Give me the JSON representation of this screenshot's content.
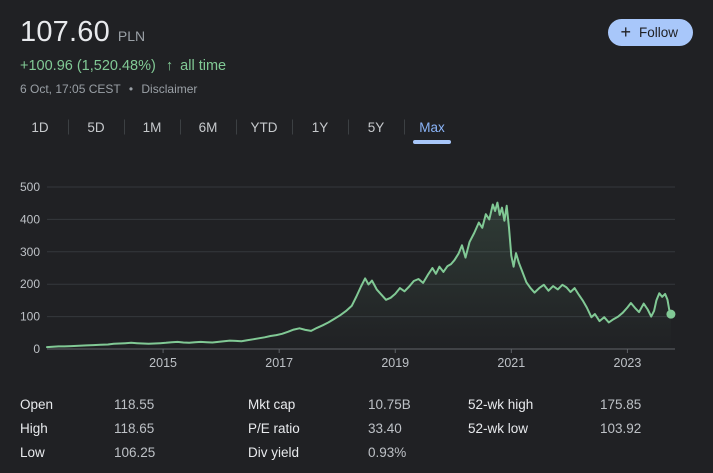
{
  "colors": {
    "background": "#202124",
    "accent_blue": "#8ab4f8",
    "underline_blue": "#a8c7fa",
    "follow_bg": "#a8c7fa",
    "positive_green": "#81c995",
    "text_primary": "#e8eaed",
    "text_secondary": "#9aa0a6",
    "axis_label": "#bdc1c6",
    "grid_line": "#34383c",
    "baseline": "#5f6368"
  },
  "header": {
    "price": "107.60",
    "currency": "PLN",
    "change_text": "+100.96 (1,520.48%)",
    "change_arrow": "↑",
    "change_period": "all time",
    "timestamp": "6 Oct, 17:05 CEST",
    "separator": "•",
    "disclaimer_label": "Disclaimer",
    "follow": {
      "plus": "+",
      "label": "Follow"
    }
  },
  "tabs": {
    "items": [
      "1D",
      "5D",
      "1M",
      "6M",
      "YTD",
      "1Y",
      "5Y",
      "Max"
    ],
    "active": "Max"
  },
  "chart_data": {
    "type": "line",
    "title": "Stock price, Max range (PLN)",
    "line_color": "#81c995",
    "grid": true,
    "ylim": [
      0,
      500
    ],
    "y_ticks": [
      0,
      100,
      200,
      300,
      400,
      500
    ],
    "x_range": [
      2013.0,
      2023.82
    ],
    "x_tick_labels": [
      "2015",
      "2017",
      "2019",
      "2021",
      "2023"
    ],
    "x_tick_years": [
      2015,
      2017,
      2019,
      2021,
      2023
    ],
    "end_point_marker": true,
    "last_value": 107.6,
    "points": [
      [
        2013.0,
        6
      ],
      [
        2013.1,
        7
      ],
      [
        2013.2,
        8
      ],
      [
        2013.3,
        8
      ],
      [
        2013.42,
        9
      ],
      [
        2013.55,
        10
      ],
      [
        2013.68,
        11
      ],
      [
        2013.8,
        12
      ],
      [
        2013.92,
        13
      ],
      [
        2014.05,
        14
      ],
      [
        2014.15,
        16
      ],
      [
        2014.25,
        17
      ],
      [
        2014.35,
        18
      ],
      [
        2014.45,
        19
      ],
      [
        2014.55,
        18
      ],
      [
        2014.65,
        17
      ],
      [
        2014.75,
        16
      ],
      [
        2014.85,
        17
      ],
      [
        2014.95,
        18
      ],
      [
        2015.05,
        19
      ],
      [
        2015.15,
        21
      ],
      [
        2015.25,
        22
      ],
      [
        2015.35,
        20
      ],
      [
        2015.45,
        19
      ],
      [
        2015.55,
        21
      ],
      [
        2015.65,
        22
      ],
      [
        2015.75,
        21
      ],
      [
        2015.85,
        20
      ],
      [
        2015.95,
        22
      ],
      [
        2016.05,
        24
      ],
      [
        2016.15,
        26
      ],
      [
        2016.25,
        25
      ],
      [
        2016.35,
        24
      ],
      [
        2016.45,
        27
      ],
      [
        2016.55,
        30
      ],
      [
        2016.65,
        33
      ],
      [
        2016.75,
        36
      ],
      [
        2016.85,
        40
      ],
      [
        2016.95,
        43
      ],
      [
        2017.05,
        47
      ],
      [
        2017.15,
        53
      ],
      [
        2017.25,
        60
      ],
      [
        2017.35,
        64
      ],
      [
        2017.45,
        59
      ],
      [
        2017.55,
        56
      ],
      [
        2017.65,
        65
      ],
      [
        2017.75,
        73
      ],
      [
        2017.85,
        82
      ],
      [
        2017.95,
        93
      ],
      [
        2018.05,
        104
      ],
      [
        2018.15,
        117
      ],
      [
        2018.25,
        133
      ],
      [
        2018.33,
        162
      ],
      [
        2018.41,
        193
      ],
      [
        2018.48,
        218
      ],
      [
        2018.54,
        199
      ],
      [
        2018.6,
        211
      ],
      [
        2018.68,
        184
      ],
      [
        2018.76,
        168
      ],
      [
        2018.84,
        152
      ],
      [
        2018.92,
        158
      ],
      [
        2019.0,
        170
      ],
      [
        2019.08,
        188
      ],
      [
        2019.16,
        178
      ],
      [
        2019.24,
        193
      ],
      [
        2019.32,
        210
      ],
      [
        2019.4,
        216
      ],
      [
        2019.48,
        204
      ],
      [
        2019.56,
        228
      ],
      [
        2019.64,
        250
      ],
      [
        2019.7,
        232
      ],
      [
        2019.76,
        254
      ],
      [
        2019.83,
        238
      ],
      [
        2019.9,
        256
      ],
      [
        2019.96,
        262
      ],
      [
        2020.02,
        274
      ],
      [
        2020.09,
        294
      ],
      [
        2020.15,
        320
      ],
      [
        2020.21,
        282
      ],
      [
        2020.28,
        330
      ],
      [
        2020.36,
        358
      ],
      [
        2020.44,
        390
      ],
      [
        2020.5,
        374
      ],
      [
        2020.56,
        416
      ],
      [
        2020.62,
        400
      ],
      [
        2020.68,
        446
      ],
      [
        2020.72,
        426
      ],
      [
        2020.76,
        452
      ],
      [
        2020.8,
        414
      ],
      [
        2020.84,
        436
      ],
      [
        2020.88,
        396
      ],
      [
        2020.92,
        442
      ],
      [
        2020.96,
        374
      ],
      [
        2021.0,
        288
      ],
      [
        2021.04,
        254
      ],
      [
        2021.08,
        296
      ],
      [
        2021.13,
        266
      ],
      [
        2021.19,
        238
      ],
      [
        2021.26,
        206
      ],
      [
        2021.33,
        188
      ],
      [
        2021.4,
        174
      ],
      [
        2021.48,
        188
      ],
      [
        2021.56,
        198
      ],
      [
        2021.64,
        180
      ],
      [
        2021.72,
        194
      ],
      [
        2021.8,
        184
      ],
      [
        2021.88,
        198
      ],
      [
        2021.95,
        190
      ],
      [
        2022.02,
        176
      ],
      [
        2022.09,
        188
      ],
      [
        2022.16,
        168
      ],
      [
        2022.23,
        150
      ],
      [
        2022.3,
        128
      ],
      [
        2022.38,
        98
      ],
      [
        2022.44,
        108
      ],
      [
        2022.52,
        86
      ],
      [
        2022.6,
        98
      ],
      [
        2022.68,
        82
      ],
      [
        2022.76,
        92
      ],
      [
        2022.84,
        100
      ],
      [
        2022.92,
        112
      ],
      [
        2023.0,
        128
      ],
      [
        2023.06,
        142
      ],
      [
        2023.13,
        127
      ],
      [
        2023.2,
        114
      ],
      [
        2023.28,
        140
      ],
      [
        2023.35,
        122
      ],
      [
        2023.41,
        100
      ],
      [
        2023.46,
        118
      ],
      [
        2023.5,
        150
      ],
      [
        2023.55,
        172
      ],
      [
        2023.6,
        161
      ],
      [
        2023.65,
        170
      ],
      [
        2023.69,
        152
      ],
      [
        2023.72,
        122
      ],
      [
        2023.75,
        107.6
      ]
    ]
  },
  "stats": {
    "columns": [
      [
        {
          "label": "Open",
          "value": "118.55"
        },
        {
          "label": "High",
          "value": "118.65"
        },
        {
          "label": "Low",
          "value": "106.25"
        }
      ],
      [
        {
          "label": "Mkt cap",
          "value": "10.75B"
        },
        {
          "label": "P/E ratio",
          "value": "33.40"
        },
        {
          "label": "Div yield",
          "value": "0.93%"
        }
      ],
      [
        {
          "label": "52-wk high",
          "value": "175.85"
        },
        {
          "label": "52-wk low",
          "value": "103.92"
        }
      ]
    ]
  }
}
